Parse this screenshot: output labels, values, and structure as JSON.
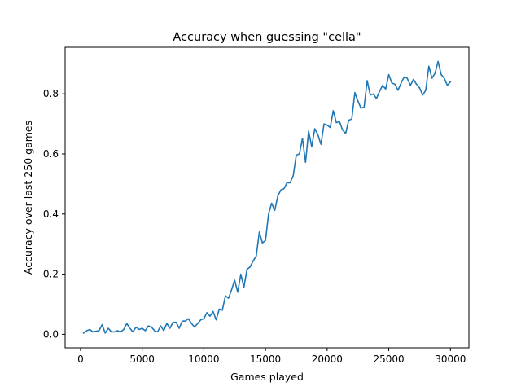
{
  "chart_data": {
    "type": "line",
    "title": "Accuracy when guessing \"cella\"",
    "xlabel": "Games played",
    "ylabel": "Accuracy over last 250 games",
    "xlim": [
      -1250,
      31500
    ],
    "ylim": [
      -0.045,
      0.955
    ],
    "xticks": [
      0,
      5000,
      10000,
      15000,
      20000,
      25000,
      30000
    ],
    "xtick_labels": [
      "0",
      "5000",
      "10000",
      "15000",
      "20000",
      "25000",
      "30000"
    ],
    "yticks": [
      0.0,
      0.2,
      0.4,
      0.6,
      0.8
    ],
    "ytick_labels": [
      "0.0",
      "0.2",
      "0.4",
      "0.6",
      "0.8"
    ],
    "grid": false,
    "line_color": "#1f77b4",
    "series": [
      {
        "x": [
          250,
          500,
          750,
          1000,
          1250,
          1500,
          1750,
          2000,
          2250,
          2500,
          2750,
          3000,
          3250,
          3500,
          3750,
          4000,
          4250,
          4500,
          4750,
          5000,
          5250,
          5500,
          5750,
          6000,
          6250,
          6500,
          6750,
          7000,
          7250,
          7500,
          7750,
          8000,
          8250,
          8500,
          8750,
          9000,
          9250,
          9500,
          9750,
          10000,
          10250,
          10500,
          10750,
          11000,
          11250,
          11500,
          11750,
          12000,
          12250,
          12500,
          12750,
          13000,
          13250,
          13500,
          13750,
          14000,
          14250,
          14500,
          14750,
          15000,
          15250,
          15500,
          15750,
          16000,
          16250,
          16500,
          16750,
          17000,
          17250,
          17500,
          17750,
          18000,
          18250,
          18500,
          18750,
          19000,
          19250,
          19500,
          19750,
          20000,
          20250,
          20500,
          20750,
          21000,
          21250,
          21500,
          21750,
          22000,
          22250,
          22500,
          22750,
          23000,
          23250,
          23500,
          23750,
          24000,
          24250,
          24500,
          24750,
          25000,
          25250,
          25500,
          25750,
          26000,
          26250,
          26500,
          26750,
          27000,
          27250,
          27500,
          27750,
          28000,
          28250,
          28500,
          28750,
          29000,
          29250,
          29500,
          29750,
          30000
        ],
        "y": [
          0.004,
          0.012,
          0.016,
          0.008,
          0.01,
          0.012,
          0.032,
          0.004,
          0.02,
          0.008,
          0.008,
          0.012,
          0.008,
          0.016,
          0.036,
          0.02,
          0.008,
          0.024,
          0.016,
          0.02,
          0.012,
          0.028,
          0.024,
          0.012,
          0.008,
          0.028,
          0.012,
          0.036,
          0.02,
          0.04,
          0.04,
          0.02,
          0.044,
          0.044,
          0.052,
          0.036,
          0.024,
          0.036,
          0.048,
          0.052,
          0.072,
          0.06,
          0.076,
          0.048,
          0.084,
          0.08,
          0.128,
          0.12,
          0.148,
          0.18,
          0.14,
          0.2,
          0.156,
          0.216,
          0.224,
          0.244,
          0.26,
          0.34,
          0.304,
          0.312,
          0.4,
          0.436,
          0.412,
          0.46,
          0.48,
          0.484,
          0.504,
          0.504,
          0.528,
          0.596,
          0.6,
          0.652,
          0.572,
          0.676,
          0.624,
          0.684,
          0.664,
          0.632,
          0.7,
          0.696,
          0.688,
          0.744,
          0.704,
          0.708,
          0.68,
          0.668,
          0.712,
          0.716,
          0.804,
          0.776,
          0.752,
          0.756,
          0.844,
          0.796,
          0.8,
          0.784,
          0.808,
          0.828,
          0.816,
          0.864,
          0.836,
          0.832,
          0.812,
          0.836,
          0.856,
          0.852,
          0.828,
          0.848,
          0.832,
          0.82,
          0.796,
          0.812,
          0.892,
          0.852,
          0.868,
          0.908,
          0.864,
          0.852,
          0.828,
          0.84
        ]
      }
    ]
  }
}
